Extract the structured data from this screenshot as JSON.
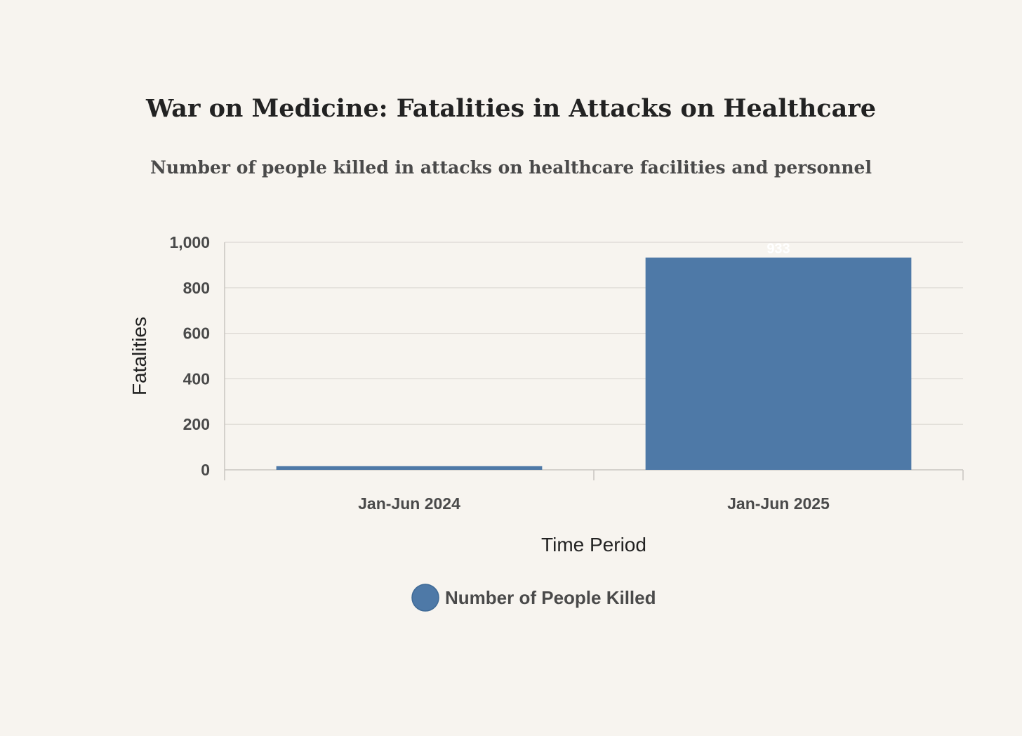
{
  "chart_data": {
    "type": "bar",
    "title": "War on Medicine: Fatalities in Attacks on Healthcare",
    "subtitle": "Number of people killed in attacks on healthcare facilities and personnel",
    "xlabel": "Time Period",
    "ylabel": "Fatalities",
    "categories": [
      "Jan-Jun 2024",
      "Jan-Jun 2025"
    ],
    "series": [
      {
        "name": "Number of People Killed",
        "values": [
          16,
          933
        ],
        "color": "#4e79a7",
        "data_labels": [
          "",
          "933"
        ]
      }
    ],
    "ylim": [
      0,
      1000
    ],
    "yticks": [
      0,
      200,
      400,
      600,
      800,
      1000
    ],
    "ytick_labels": [
      "0",
      "200",
      "400",
      "600",
      "800",
      "1,000"
    ],
    "grid": true,
    "legend_position": "bottom-center"
  }
}
